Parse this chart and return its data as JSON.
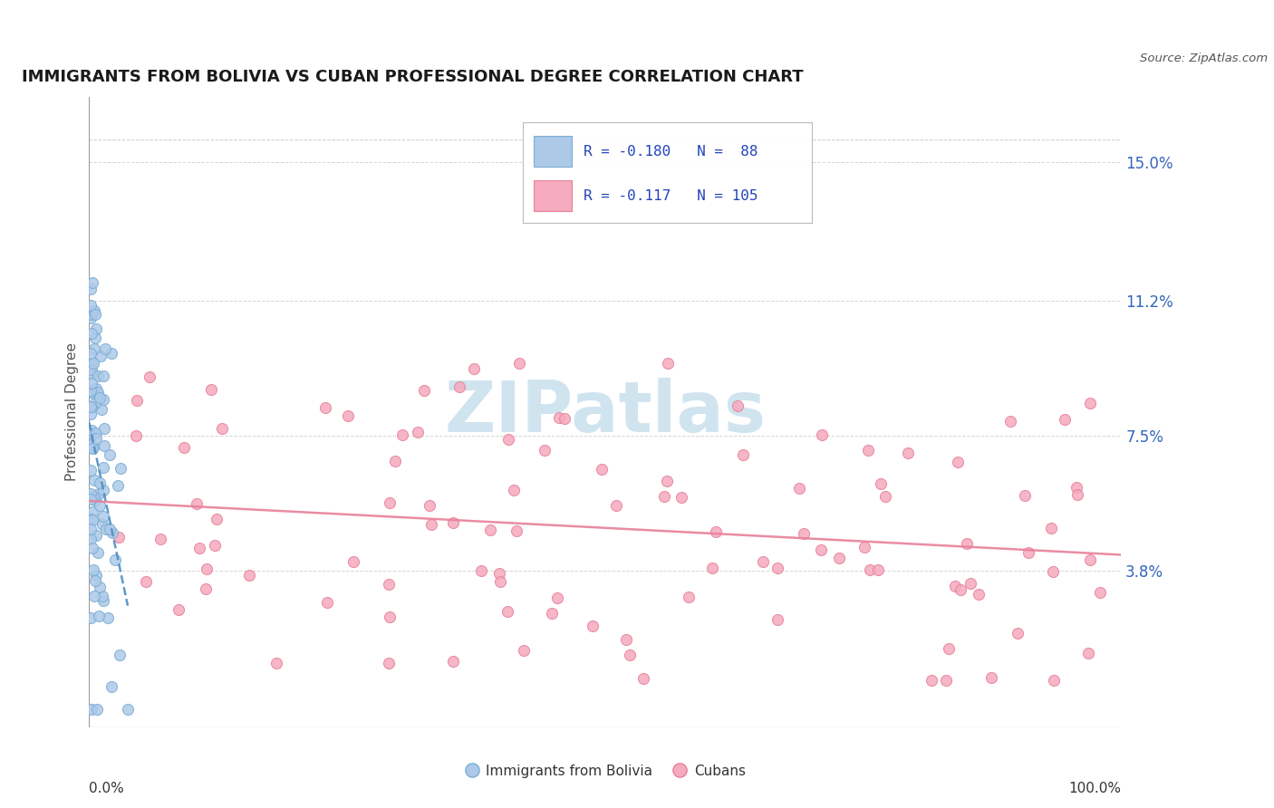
{
  "title": "IMMIGRANTS FROM BOLIVIA VS CUBAN PROFESSIONAL DEGREE CORRELATION CHART",
  "source": "Source: ZipAtlas.com",
  "ylabel": "Professional Degree",
  "y_tick_labels": [
    "3.8%",
    "7.5%",
    "11.2%",
    "15.0%"
  ],
  "y_tick_values": [
    0.038,
    0.075,
    0.112,
    0.15
  ],
  "x_min": 0.0,
  "x_max": 1.0,
  "y_min": -0.005,
  "y_max": 0.168,
  "legend_R1": "-0.180",
  "legend_N1": "88",
  "legend_R2": "-0.117",
  "legend_N2": "105",
  "bolivia_color": "#adc9e8",
  "cuba_color": "#f5aabf",
  "bolivia_edge": "#7aadd4",
  "cuba_edge": "#e8809a",
  "trend_bolivia_color": "#4d8fc4",
  "trend_cuba_color": "#e8809a",
  "watermark_color": "#d0e4f0",
  "title_color": "#1a1a1a",
  "source_color": "#555555",
  "tick_label_color": "#3366bb",
  "ylabel_color": "#555555",
  "grid_color": "#cccccc",
  "bottom_label_color": "#333333"
}
